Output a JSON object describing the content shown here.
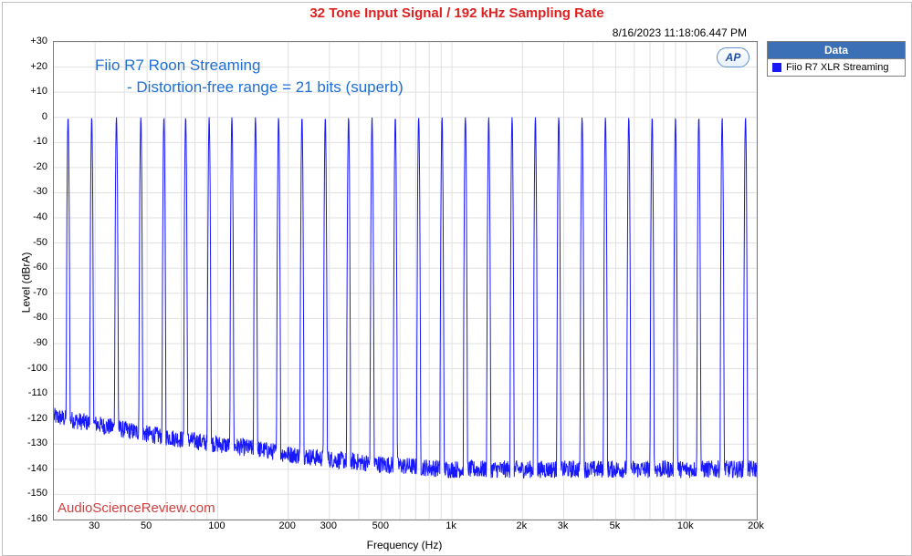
{
  "title": {
    "text": "32 Tone Input Signal / 192 kHz Sampling Rate",
    "color": "#e02020"
  },
  "timestamp": "8/16/2023 11:18:06.447 PM",
  "annotation": {
    "line1": "Fiio R7 Roon Streaming",
    "line2": "- Distortion-free range = 21 bits (superb)",
    "color": "#1f6fd4"
  },
  "watermark": {
    "text": "AudioScienceReview.com",
    "color": "#d04040"
  },
  "legend": {
    "header": "Data",
    "header_bg": "#3b6fb6",
    "items": [
      {
        "label": "Fiio R7 XLR Streaming",
        "color": "#1818ff"
      }
    ]
  },
  "ap_logo": "AP",
  "axes": {
    "xlabel": "Frequency (Hz)",
    "ylabel": "Level (dBrA)",
    "ymin": -160,
    "ymax": 30,
    "ytick_step": 10,
    "xmin": 20,
    "xmax": 20000,
    "xscale": "log",
    "xticks": [
      {
        "v": 30,
        "l": "30"
      },
      {
        "v": 50,
        "l": "50"
      },
      {
        "v": 100,
        "l": "100"
      },
      {
        "v": 200,
        "l": "200"
      },
      {
        "v": 300,
        "l": "300"
      },
      {
        "v": 500,
        "l": "500"
      },
      {
        "v": 1000,
        "l": "1k"
      },
      {
        "v": 2000,
        "l": "2k"
      },
      {
        "v": 3000,
        "l": "3k"
      },
      {
        "v": 5000,
        "l": "5k"
      },
      {
        "v": 10000,
        "l": "10k"
      },
      {
        "v": 20000,
        "l": "20k"
      }
    ],
    "xgrid_minor": [
      40,
      60,
      70,
      80,
      90,
      400,
      600,
      700,
      800,
      900,
      4000,
      6000,
      7000,
      8000,
      9000
    ],
    "grid_color": "#e0e0e0"
  },
  "chart": {
    "type": "line-spectrum-log",
    "line_color": "#1818ff",
    "line_width": 1,
    "tones_hz": [
      23,
      29,
      37,
      47,
      59,
      73,
      92,
      115,
      145,
      182,
      229,
      288,
      362,
      456,
      573,
      721,
      907,
      1141,
      1435,
      1805,
      2270,
      2856,
      3592,
      4518,
      5683,
      7150,
      8994,
      11314,
      14232,
      17902
    ],
    "tone_peak_db": 0,
    "floor_points": [
      {
        "hz": 20,
        "db": -119
      },
      {
        "hz": 30,
        "db": -122
      },
      {
        "hz": 50,
        "db": -126
      },
      {
        "hz": 70,
        "db": -128
      },
      {
        "hz": 100,
        "db": -130
      },
      {
        "hz": 150,
        "db": -132
      },
      {
        "hz": 200,
        "db": -134
      },
      {
        "hz": 300,
        "db": -136
      },
      {
        "hz": 500,
        "db": -138
      },
      {
        "hz": 700,
        "db": -139
      },
      {
        "hz": 1000,
        "db": -140
      },
      {
        "hz": 2000,
        "db": -140
      },
      {
        "hz": 5000,
        "db": -140
      },
      {
        "hz": 10000,
        "db": -140
      },
      {
        "hz": 20000,
        "db": -140
      }
    ],
    "floor_ripple_db": 7,
    "peak_half_width_decades": 0.006
  }
}
